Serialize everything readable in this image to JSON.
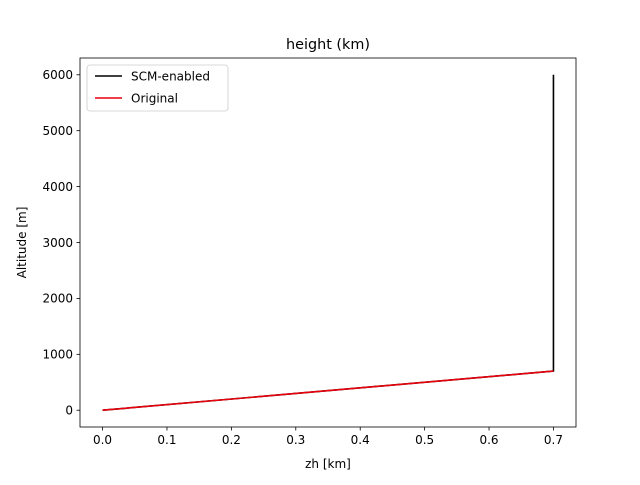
{
  "chart_data": {
    "type": "line",
    "title": "height (km)",
    "xlabel": "zh [km]",
    "ylabel": "Altitude [m]",
    "xlim": [
      -0.035,
      0.735
    ],
    "ylim": [
      -300,
      6300
    ],
    "xticks": [
      0.0,
      0.1,
      0.2,
      0.3,
      0.4,
      0.5,
      0.6,
      0.7
    ],
    "xtick_labels": [
      "0.0",
      "0.1",
      "0.2",
      "0.3",
      "0.4",
      "0.5",
      "0.6",
      "0.7"
    ],
    "yticks": [
      0,
      1000,
      2000,
      3000,
      4000,
      5000,
      6000
    ],
    "ytick_labels": [
      "0",
      "1000",
      "2000",
      "3000",
      "4000",
      "5000",
      "6000"
    ],
    "grid": false,
    "legend_position": "top-left",
    "series": [
      {
        "name": "SCM-enabled",
        "color": "#000000",
        "x": [
          0.0,
          0.7,
          0.7
        ],
        "y": [
          0,
          700,
          6000
        ]
      },
      {
        "name": "Original",
        "color": "#e8000b",
        "x": [
          0.0,
          0.7
        ],
        "y": [
          0,
          700
        ]
      }
    ]
  }
}
